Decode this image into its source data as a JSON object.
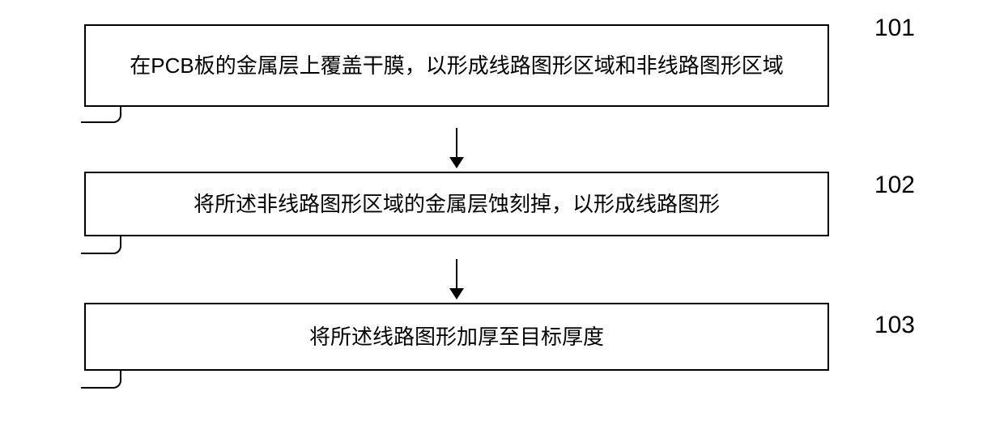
{
  "flowchart": {
    "type": "flowchart",
    "direction": "vertical",
    "box_border_color": "#000000",
    "box_border_width": 2,
    "box_background": "#ffffff",
    "text_color": "#000000",
    "text_fontsize": 26,
    "label_fontsize": 30,
    "arrow_color": "#000000",
    "nodes": [
      {
        "id": "step1",
        "label": "101",
        "text": "在PCB板的金属层上覆盖干膜，以形成线路图形区域和非线路图形区域"
      },
      {
        "id": "step2",
        "label": "102",
        "text": "将所述非线路图形区域的金属层蚀刻掉，以形成线路图形"
      },
      {
        "id": "step3",
        "label": "103",
        "text": "将所述线路图形加厚至目标厚度"
      }
    ],
    "edges": [
      {
        "from": "step1",
        "to": "step2"
      },
      {
        "from": "step2",
        "to": "step3"
      }
    ]
  }
}
